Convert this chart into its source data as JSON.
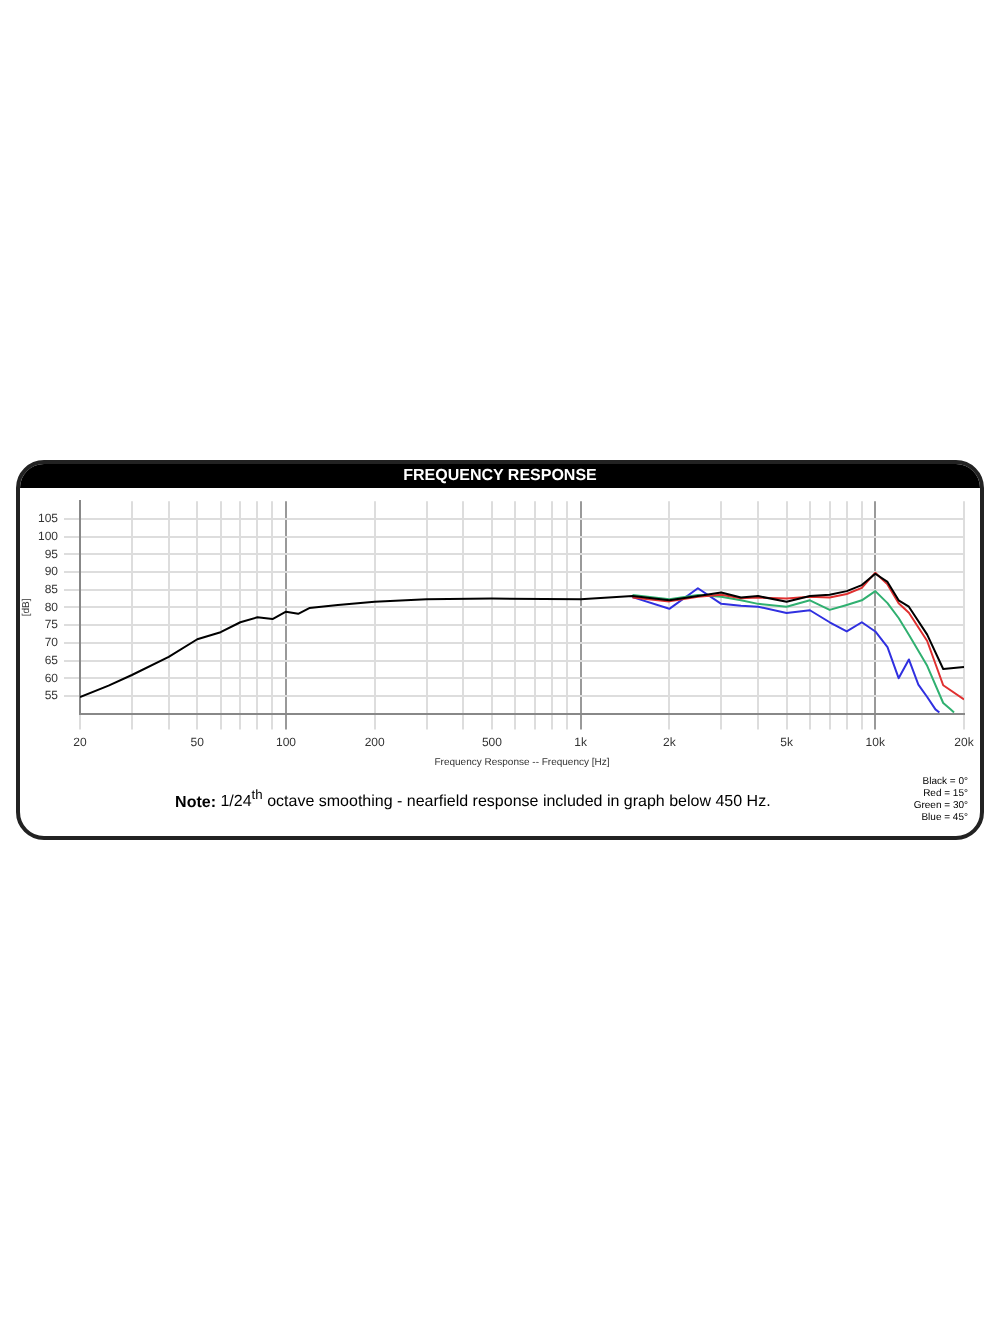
{
  "chart_data": {
    "type": "line",
    "title": "FREQUENCY RESPONSE",
    "xlabel": "Frequency Response -- Frequency [Hz]",
    "ylabel": "[dB]",
    "annotations": [
      "Note: 1/24$^{th}$ octave smoothing - nearfield response included in graph below 450 Hz.",
      "Black = 0°",
      "Red = 15°",
      "Green = 30°",
      "Blue = 45°"
    ],
    "log": "x",
    "grid": true,
    "legend": false,
    "marker": "none",
    "line_style": "solid",
    "xlim": [
      20,
      20000
    ],
    "ylim": [
      50,
      110
    ],
    "xticks": [
      20,
      {
        "value": 30,
        "label": null
      },
      {
        "value": 40,
        "label": null
      },
      50,
      {
        "value": 60,
        "label": null
      },
      {
        "value": 70,
        "label": null
      },
      {
        "value": 80,
        "label": null
      },
      {
        "value": 90,
        "label": null
      },
      100,
      200,
      {
        "value": 300,
        "label": null
      },
      {
        "value": 400,
        "label": null
      },
      500,
      {
        "value": 600,
        "label": null
      },
      {
        "value": 700,
        "label": null
      },
      {
        "value": 800,
        "label": null
      },
      {
        "value": 900,
        "label": null
      },
      {
        "value": 1000,
        "label": "1k"
      },
      {
        "value": 2000,
        "label": "2k"
      },
      {
        "value": 3000,
        "label": null
      },
      {
        "value": 4000,
        "label": null
      },
      {
        "value": 5000,
        "label": "5k"
      },
      {
        "value": 6000,
        "label": null
      },
      {
        "value": 7000,
        "label": null
      },
      {
        "value": 8000,
        "label": null
      },
      {
        "value": 9000,
        "label": null
      },
      {
        "value": 10000,
        "label": "10k"
      },
      {
        "value": 20000,
        "label": "20k"
      }
    ],
    "yticks": [
      55,
      60,
      65,
      70,
      75,
      80,
      85,
      90,
      95,
      100,
      105
    ],
    "series": [
      {
        "color": "#000000",
        "x": [
          20,
          25,
          30,
          40,
          50,
          60,
          70,
          80,
          90,
          100,
          110,
          120,
          150,
          200,
          300,
          500,
          1000,
          1500,
          2000,
          2500,
          3000,
          3500,
          4000,
          5000,
          6000,
          7000,
          8000,
          9000,
          10000,
          11000,
          12000,
          13000,
          15000,
          17000,
          20000
        ],
        "values": [
          54.7,
          57.9,
          60.9,
          66,
          71,
          73,
          75.8,
          77.2,
          76.7,
          78.8,
          78.2,
          79.8,
          80.7,
          81.6,
          82.3,
          82.5,
          82.3,
          83.2,
          82,
          83.2,
          84.2,
          82.8,
          83.2,
          81.6,
          83.2,
          83.6,
          84.6,
          86.3,
          89.5,
          87.2,
          82,
          80.2,
          72.3,
          62.6,
          63.2
        ]
      },
      {
        "color": "#e03030",
        "x": [
          1500,
          2000,
          2500,
          3000,
          3500,
          4000,
          5000,
          6000,
          7000,
          8000,
          9000,
          10000,
          11000,
          12000,
          13000,
          15000,
          17000,
          20000
        ],
        "values": [
          82.8,
          81.7,
          83,
          83.6,
          82.6,
          82.8,
          82.5,
          83,
          82.8,
          83.8,
          85.5,
          89.8,
          86.5,
          81.2,
          78.5,
          70.5,
          58,
          54
        ]
      },
      {
        "color": "#30b070",
        "x": [
          1500,
          2000,
          2500,
          3000,
          3500,
          4000,
          5000,
          6000,
          7000,
          8000,
          9000,
          10000,
          11000,
          12000,
          13000,
          15000,
          17000,
          18000,
          18500
        ],
        "values": [
          83.5,
          82.3,
          83.5,
          83,
          82,
          81,
          80.2,
          82,
          79.3,
          80.7,
          82,
          84.6,
          81.2,
          77,
          72.3,
          63.5,
          53,
          51.2,
          50.3
        ]
      },
      {
        "color": "#3030e0",
        "x": [
          1500,
          2000,
          2500,
          3000,
          3500,
          4000,
          5000,
          6000,
          7000,
          8000,
          9000,
          10000,
          11000,
          12000,
          13000,
          14000,
          15000,
          16000,
          16500
        ],
        "values": [
          82.9,
          79.6,
          85.4,
          81,
          80.5,
          80.2,
          78.4,
          79.2,
          75.8,
          73.2,
          75.8,
          73.2,
          68.8,
          60,
          65.3,
          58.2,
          54.7,
          51.2,
          50.3
        ]
      }
    ]
  }
}
